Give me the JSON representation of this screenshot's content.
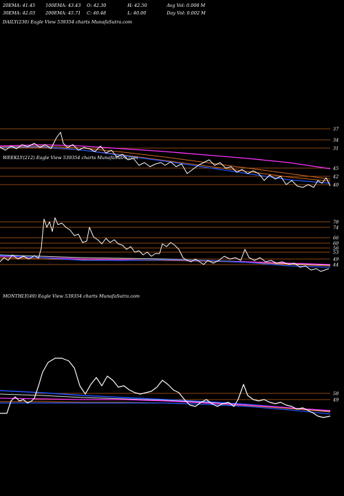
{
  "header": {
    "row1": [
      "20EMA: 41.45",
      "100EMA: 43.43",
      "O: 42.30",
      "H: 42.50",
      "Avg Vol: 0.008 M"
    ],
    "row2": [
      "30EMA: 42.03",
      "200EMA: 45.71",
      "C: 40.48",
      "L: 40.00",
      "Day Vol: 0.002 M"
    ]
  },
  "colors": {
    "background": "#000000",
    "price": "#ffffff",
    "ema_blue": "#2255ff",
    "ema_magenta": "#ff33ff",
    "ema_orange": "#d2691e",
    "grid": "#c0601a",
    "ema_white": "#dddddd"
  },
  "chart_data": [
    {
      "type": "line",
      "title": "DAILY(230) Eagle  View  539354  charts MunafaSutra.com",
      "yticks": [
        37,
        34,
        31,
        45,
        42,
        40
      ],
      "ytick_labels": [
        "37",
        "34",
        "31",
        "45",
        "42",
        "40"
      ],
      "grid": true,
      "series_count": 5,
      "note": ""
    },
    {
      "type": "line",
      "title": "WEEKLY(212) Eagle  View  539354  charts MunafaSutra.com",
      "yticks": [
        78,
        74,
        66,
        60,
        56,
        53,
        49,
        44
      ],
      "ytick_labels": [
        "78",
        "74",
        "66",
        "60",
        "56",
        "53",
        "49",
        "44"
      ],
      "grid": true
    },
    {
      "type": "line",
      "title": "MONTHLY(49) Eagle  View  539354  charts MunafaSutra.com",
      "yticks": [
        58,
        49
      ],
      "ytick_labels": [
        "58",
        "49"
      ],
      "grid": true
    }
  ]
}
